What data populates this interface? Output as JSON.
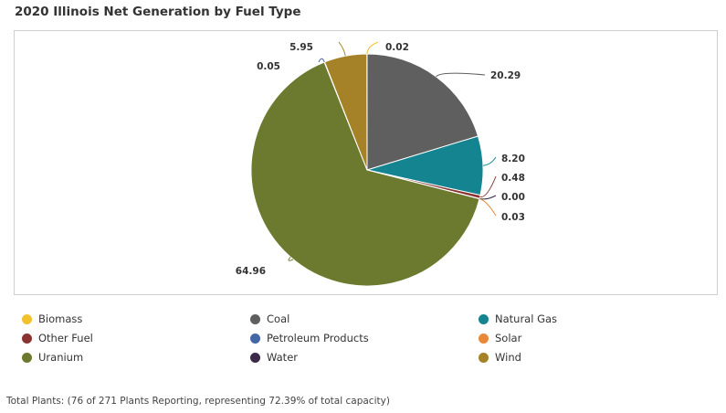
{
  "chart_data": {
    "type": "pie",
    "title": "2020 Illinois Net Generation by Fuel Type",
    "categories": [
      "Coal",
      "Natural Gas",
      "Other Fuel",
      "Water",
      "Solar",
      "Uranium",
      "Petroleum Products",
      "Wind",
      "Biomass"
    ],
    "values": [
      20.29,
      8.2,
      0.48,
      0.0,
      0.03,
      64.96,
      0.05,
      5.95,
      0.02
    ],
    "data_labels": [
      "20.29",
      "8.20",
      "0.48",
      "0.00",
      "0.03",
      "64.96",
      "0.05",
      "5.95",
      "0.02"
    ],
    "colors": {
      "Biomass": "#f2c12e",
      "Coal": "#5f5f5f",
      "Natural Gas": "#138490",
      "Other Fuel": "#8b3333",
      "Petroleum Products": "#4467a8",
      "Solar": "#e8893a",
      "Uranium": "#6b7a2e",
      "Water": "#3b2a4a",
      "Wind": "#a58127"
    },
    "start_angle": "12 o'clock, clockwise",
    "legend_position": "bottom",
    "legend": [
      "Biomass",
      "Coal",
      "Natural Gas",
      "Other Fuel",
      "Petroleum Products",
      "Solar",
      "Uranium",
      "Water",
      "Wind"
    ]
  },
  "footnote": "Total Plants: (76 of 271 Plants Reporting, representing 72.39% of total capacity)"
}
